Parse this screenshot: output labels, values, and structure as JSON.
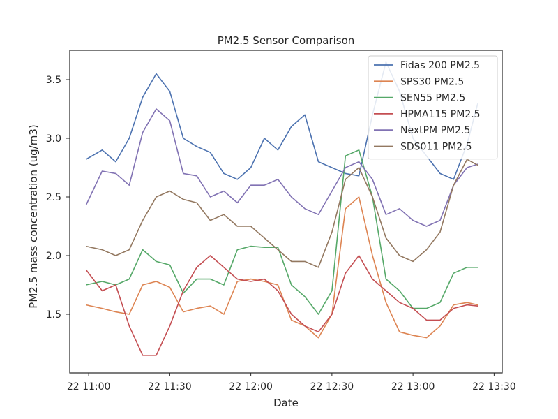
{
  "chart_data": {
    "type": "line",
    "title": "PM2.5 Sensor Comparison",
    "xlabel": "Date",
    "ylabel": "PM2.5 mass concentration (ug/m3)",
    "xlim": [
      "22 10:53",
      "22 13:33"
    ],
    "ylim": [
      1.0,
      3.75
    ],
    "x_ticks": [
      "22 11:00",
      "22 11:30",
      "22 12:00",
      "22 12:30",
      "22 13:00",
      "22 13:30"
    ],
    "y_ticks": [
      "1.5",
      "2.0",
      "2.5",
      "3.0",
      "3.5"
    ],
    "grid": false,
    "legend_position": "top-right",
    "x": [
      "22 10:59",
      "22 11:05",
      "22 11:10",
      "22 11:15",
      "22 11:20",
      "22 11:25",
      "22 11:30",
      "22 11:35",
      "22 11:40",
      "22 11:45",
      "22 11:50",
      "22 11:55",
      "22 12:00",
      "22 12:05",
      "22 12:10",
      "22 12:15",
      "22 12:20",
      "22 12:25",
      "22 12:30",
      "22 12:35",
      "22 12:40",
      "22 12:45",
      "22 12:50",
      "22 12:55",
      "22 13:00",
      "22 13:05",
      "22 13:10",
      "22 13:15",
      "22 13:20",
      "22 13:24"
    ],
    "series": [
      {
        "name": "Fidas 200 PM2.5",
        "color": "#4c72b0",
        "values": [
          2.82,
          2.9,
          2.8,
          3.0,
          3.35,
          3.55,
          3.4,
          3.0,
          2.93,
          2.88,
          2.7,
          2.65,
          2.75,
          3.0,
          2.9,
          3.1,
          3.2,
          2.8,
          2.75,
          2.7,
          2.68,
          3.2,
          3.65,
          3.4,
          3.0,
          2.85,
          2.7,
          2.65,
          2.95,
          3.3
        ]
      },
      {
        "name": "SPS30 PM2.5",
        "color": "#dd8452",
        "values": [
          1.58,
          1.55,
          1.52,
          1.5,
          1.75,
          1.78,
          1.73,
          1.52,
          1.55,
          1.57,
          1.5,
          1.78,
          1.8,
          1.78,
          1.75,
          1.45,
          1.4,
          1.3,
          1.5,
          2.4,
          2.5,
          2.0,
          1.6,
          1.35,
          1.32,
          1.3,
          1.4,
          1.58,
          1.6,
          1.58
        ]
      },
      {
        "name": "SEN55 PM2.5",
        "color": "#55a868",
        "values": [
          1.75,
          1.78,
          1.75,
          1.8,
          2.05,
          1.95,
          1.92,
          1.68,
          1.8,
          1.8,
          1.75,
          2.05,
          2.08,
          2.07,
          2.07,
          1.75,
          1.65,
          1.5,
          1.7,
          2.85,
          2.9,
          2.5,
          1.8,
          1.7,
          1.55,
          1.55,
          1.6,
          1.85,
          1.9,
          1.9
        ]
      },
      {
        "name": "HPMA115 PM2.5",
        "color": "#c44e52",
        "values": [
          1.88,
          1.7,
          1.75,
          1.4,
          1.15,
          1.15,
          1.4,
          1.7,
          1.9,
          2.0,
          1.9,
          1.8,
          1.78,
          1.8,
          1.7,
          1.5,
          1.4,
          1.35,
          1.5,
          1.85,
          2.0,
          1.8,
          1.7,
          1.6,
          1.55,
          1.45,
          1.45,
          1.55,
          1.58,
          1.57
        ]
      },
      {
        "name": "NextPM PM2.5",
        "color": "#8172b3",
        "values": [
          2.43,
          2.72,
          2.7,
          2.6,
          3.05,
          3.25,
          3.15,
          2.7,
          2.68,
          2.5,
          2.55,
          2.45,
          2.6,
          2.6,
          2.65,
          2.5,
          2.4,
          2.35,
          2.55,
          2.75,
          2.8,
          2.65,
          2.35,
          2.4,
          2.3,
          2.25,
          2.3,
          2.6,
          2.75,
          2.78
        ]
      },
      {
        "name": "SDS011 PM2.5",
        "color": "#937860",
        "values": [
          2.08,
          2.05,
          2.0,
          2.05,
          2.3,
          2.5,
          2.55,
          2.48,
          2.45,
          2.3,
          2.35,
          2.25,
          2.25,
          2.15,
          2.05,
          1.95,
          1.95,
          1.9,
          2.2,
          2.65,
          2.75,
          2.5,
          2.15,
          2.0,
          1.95,
          2.05,
          2.2,
          2.6,
          2.82,
          2.77
        ]
      }
    ]
  }
}
